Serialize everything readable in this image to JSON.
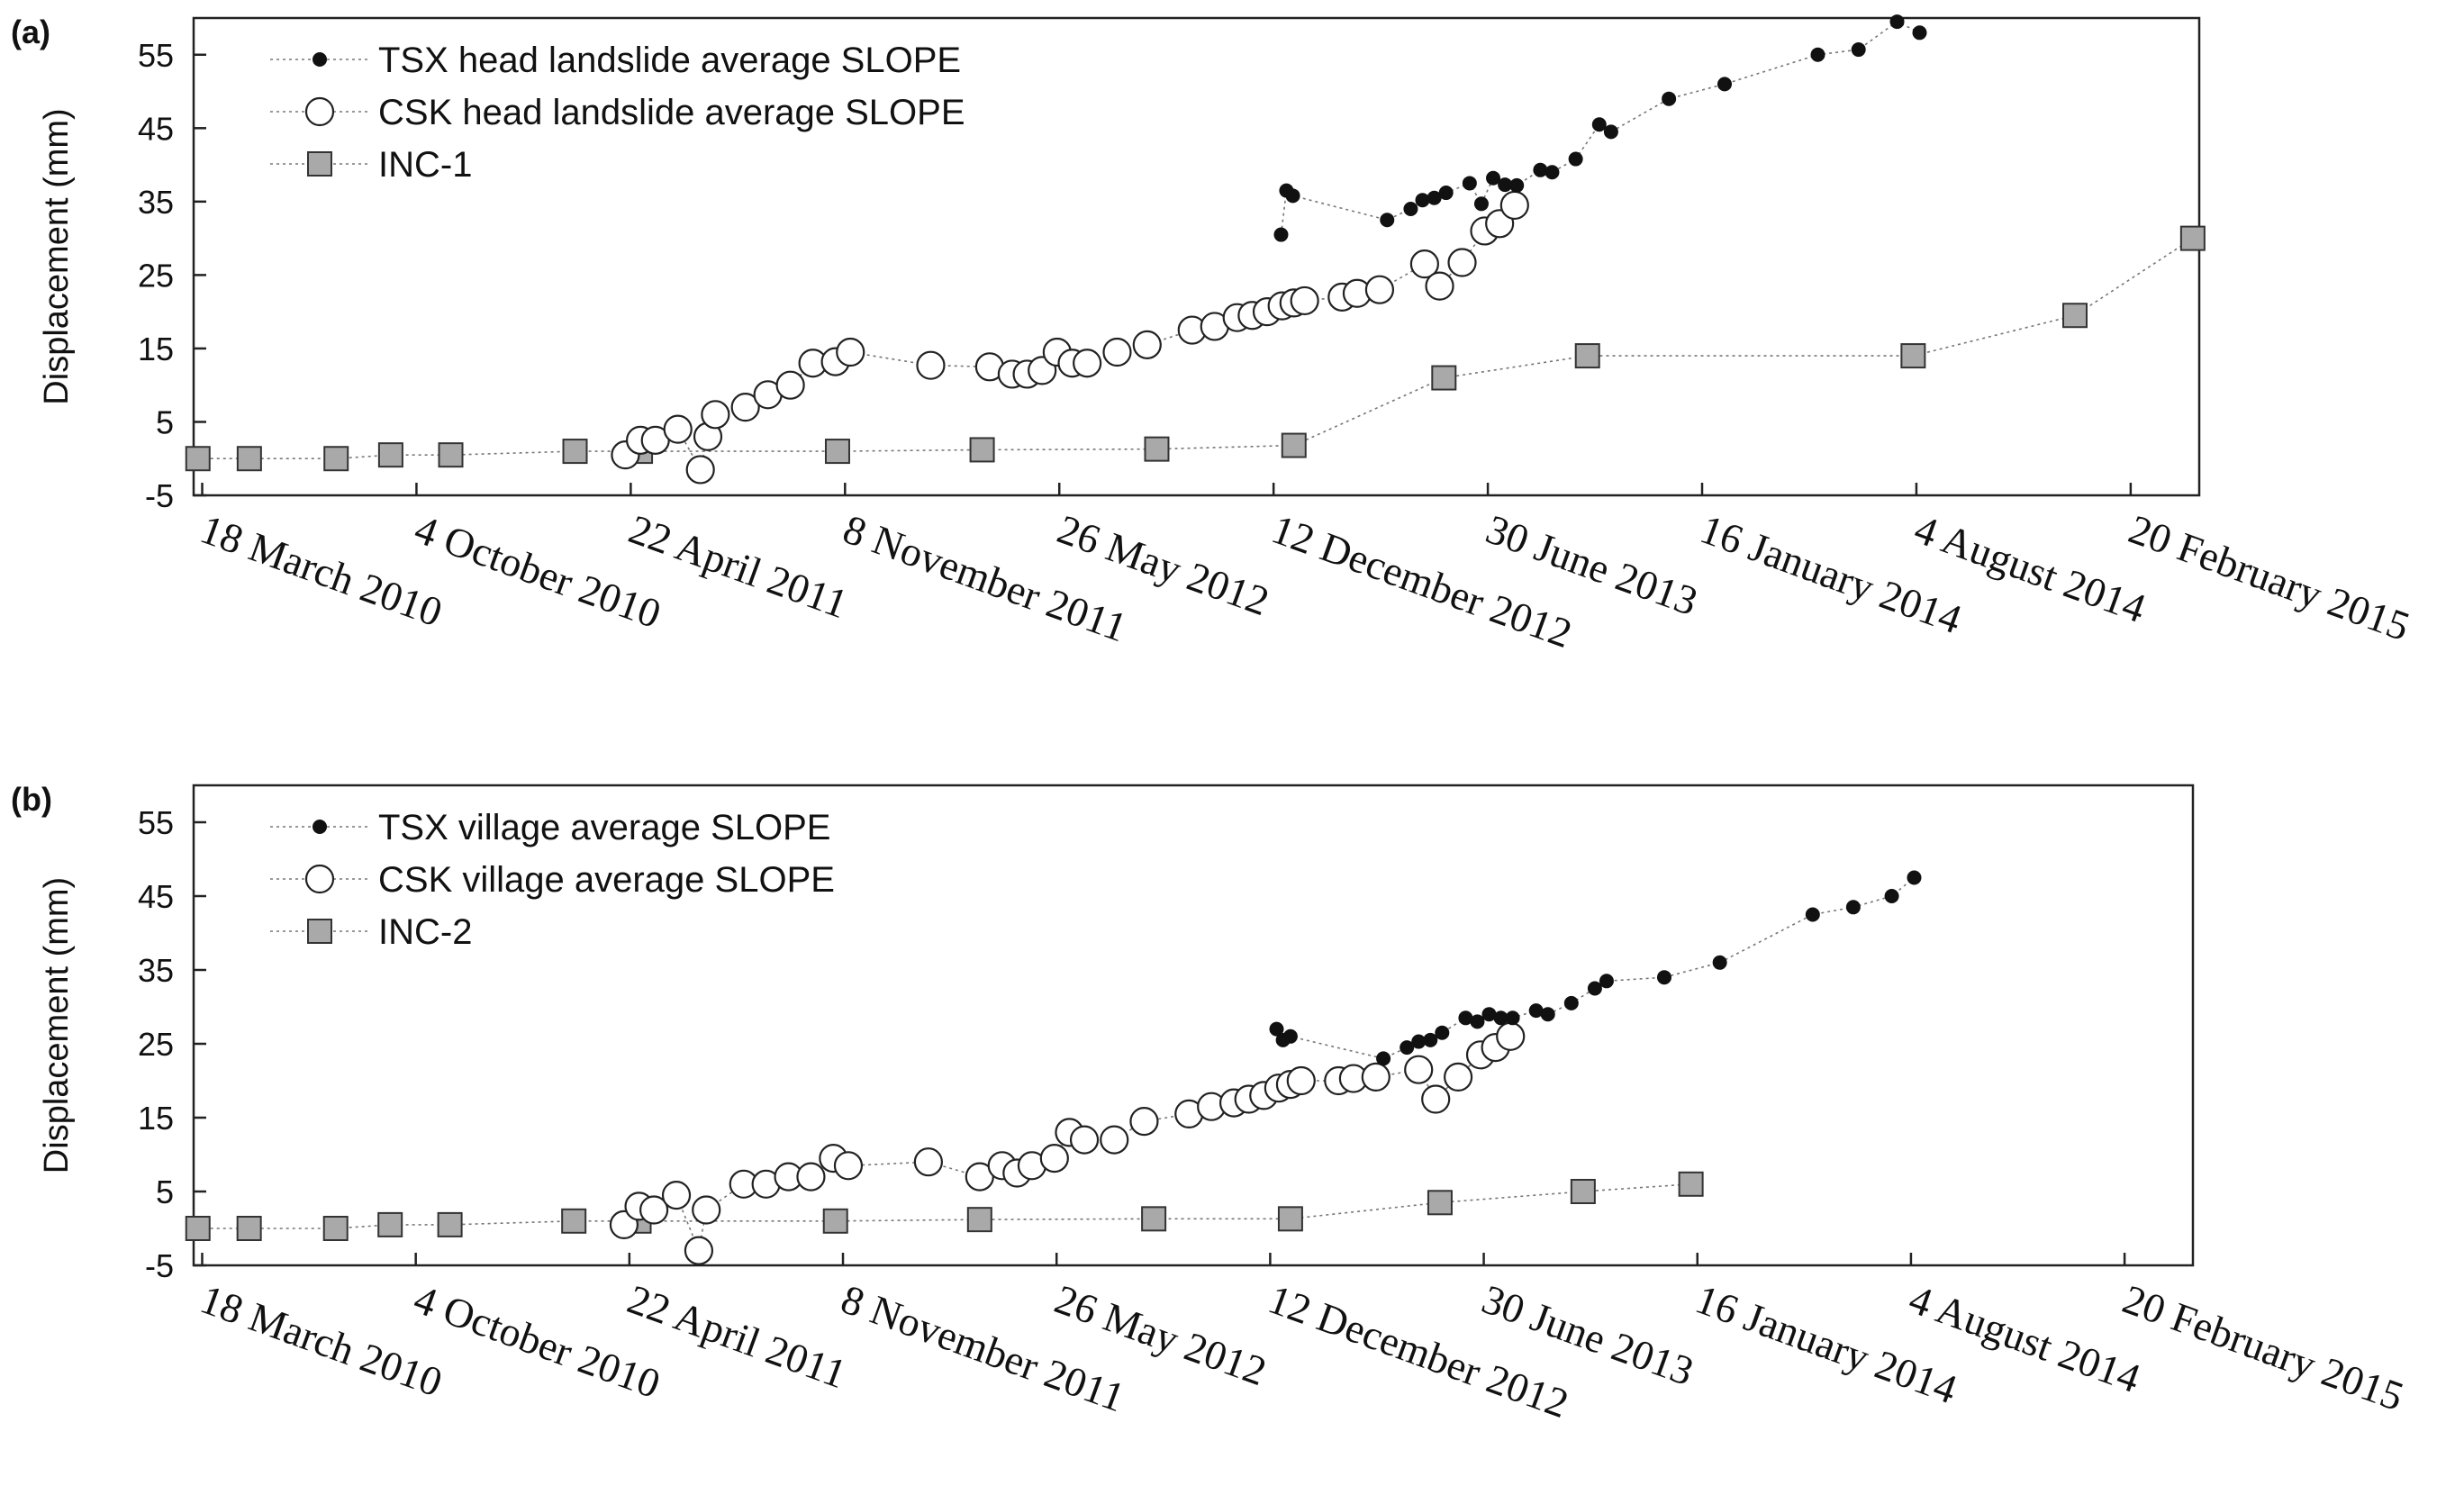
{
  "chart_data": [
    {
      "panel": "(a)",
      "type": "scatter",
      "ylabel": "Displacement (mm)",
      "xlabel": "",
      "ylim": [
        -5,
        60
      ],
      "yticks": [
        "-5",
        "5",
        "15",
        "25",
        "35",
        "45",
        "55"
      ],
      "xticks": [
        "18 March 2010",
        "4 October 2010",
        "22 April 2011",
        "8 November 2011",
        "26 May 2012",
        "12 December 2012",
        "30 June 2013",
        "16 January 2014",
        "4 August 2014",
        "20 February 2015"
      ],
      "legend_position": "top-left",
      "series": [
        {
          "name": "TSX head landslide average SLOPE",
          "marker": "filled-dot",
          "x": [
            "2012-12-19",
            "2012-12-24",
            "2012-12-30",
            "2013-03-28",
            "2013-04-19",
            "2013-04-30",
            "2013-05-11",
            "2013-05-22",
            "2013-06-13",
            "2013-06-24",
            "2013-07-05",
            "2013-07-16",
            "2013-07-27",
            "2013-08-18",
            "2013-08-29",
            "2013-09-20",
            "2013-10-12",
            "2013-10-23",
            "2013-12-16",
            "2014-02-06",
            "2014-05-04",
            "2014-06-11",
            "2014-07-17",
            "2014-08-07"
          ],
          "y": [
            30.5,
            36.5,
            35.8,
            32.5,
            34,
            35.2,
            35.5,
            36.2,
            37.5,
            34.7,
            38.2,
            37.3,
            37.2,
            39.3,
            39,
            40.8,
            45.5,
            44.5,
            49,
            51,
            55,
            55.7,
            59.5,
            58
          ]
        },
        {
          "name": "CSK head landslide average SLOPE",
          "marker": "open-circle",
          "x": [
            "2011-04-17",
            "2011-05-01",
            "2011-05-15",
            "2011-06-05",
            "2011-06-26",
            "2011-07-03",
            "2011-07-10",
            "2011-08-07",
            "2011-08-28",
            "2011-09-18",
            "2011-10-09",
            "2011-10-30",
            "2011-11-13",
            "2012-01-27",
            "2012-03-22",
            "2012-04-12",
            "2012-04-26",
            "2012-05-10",
            "2012-05-24",
            "2012-06-07",
            "2012-06-21",
            "2012-07-19",
            "2012-08-16",
            "2012-09-27",
            "2012-10-18",
            "2012-11-08",
            "2012-11-22",
            "2012-12-06",
            "2012-12-20",
            "2012-12-31",
            "2013-01-10",
            "2013-02-14",
            "2013-02-28",
            "2013-03-21",
            "2013-05-02",
            "2013-05-16",
            "2013-06-06",
            "2013-06-27",
            "2013-07-11",
            "2013-07-25"
          ],
          "y": [
            0.5,
            2.5,
            2.5,
            4,
            -1.5,
            3,
            6,
            7,
            8.7,
            10,
            13,
            13.2,
            14.5,
            12.7,
            12.5,
            11.5,
            11.5,
            12,
            14.5,
            13,
            13,
            14.5,
            15.5,
            17.5,
            18,
            19.2,
            19.5,
            20,
            20.8,
            21.2,
            21.5,
            22,
            22.5,
            23,
            26.5,
            23.5,
            26.7,
            31,
            32,
            34.5
          ]
        },
        {
          "name": "INC-1",
          "marker": "filled-square",
          "x": [
            "2010-03-14",
            "2010-05-01",
            "2010-07-21",
            "2010-09-10",
            "2010-11-05",
            "2011-03-01",
            "2011-05-01",
            "2011-11-01",
            "2012-03-15",
            "2012-08-25",
            "2012-12-31",
            "2013-05-20",
            "2013-10-01",
            "2014-08-01",
            "2014-12-30",
            "2015-04-19"
          ],
          "y": [
            0,
            0,
            0,
            0.5,
            0.5,
            1,
            1,
            1,
            1.2,
            1.3,
            1.8,
            11,
            14,
            14,
            19.5,
            30
          ]
        }
      ]
    },
    {
      "panel": "(b)",
      "type": "scatter",
      "ylabel": "Displacement (mm)",
      "xlabel": "",
      "ylim": [
        -5,
        60
      ],
      "yticks": [
        "-5",
        "5",
        "15",
        "25",
        "35",
        "45",
        "55"
      ],
      "xticks": [
        "18 March 2010",
        "4 October 2010",
        "22 April 2011",
        "8 November 2011",
        "26 May 2012",
        "12 December 2012",
        "30 June 2013",
        "16 January 2014",
        "4 August 2014",
        "20 February 2015"
      ],
      "legend_position": "top-left",
      "series": [
        {
          "name": "TSX village average SLOPE",
          "marker": "filled-dot",
          "x": [
            "2012-12-18",
            "2012-12-24",
            "2012-12-31",
            "2013-03-28",
            "2013-04-19",
            "2013-04-30",
            "2013-05-11",
            "2013-05-22",
            "2013-06-13",
            "2013-06-24",
            "2013-07-05",
            "2013-07-16",
            "2013-07-27",
            "2013-08-18",
            "2013-08-29",
            "2013-09-20",
            "2013-10-12",
            "2013-10-23",
            "2013-12-16",
            "2014-02-06",
            "2014-05-04",
            "2014-06-11",
            "2014-07-17",
            "2014-08-07"
          ],
          "y": [
            27,
            25.5,
            26,
            23,
            24.5,
            25.3,
            25.5,
            26.5,
            28.5,
            28,
            29,
            28.5,
            28.5,
            29.5,
            29,
            30.5,
            32.5,
            33.5,
            34,
            36,
            42.5,
            43.5,
            45,
            47.5
          ]
        },
        {
          "name": "CSK village average SLOPE",
          "marker": "open-circle",
          "x": [
            "2011-04-17",
            "2011-05-01",
            "2011-05-15",
            "2011-06-05",
            "2011-06-26",
            "2011-07-03",
            "2011-08-07",
            "2011-08-28",
            "2011-09-18",
            "2011-10-09",
            "2011-10-30",
            "2011-11-13",
            "2012-01-27",
            "2012-03-15",
            "2012-04-05",
            "2012-04-19",
            "2012-05-03",
            "2012-05-24",
            "2012-06-07",
            "2012-06-21",
            "2012-07-19",
            "2012-08-16",
            "2012-09-27",
            "2012-10-18",
            "2012-11-08",
            "2012-11-22",
            "2012-12-06",
            "2012-12-20",
            "2012-12-31",
            "2013-01-10",
            "2013-02-14",
            "2013-02-28",
            "2013-03-21",
            "2013-04-30",
            "2013-05-16",
            "2013-06-06",
            "2013-06-27",
            "2013-07-11",
            "2013-07-25"
          ],
          "y": [
            0.5,
            3,
            2.5,
            4.5,
            -3,
            2.5,
            6,
            6,
            7,
            7,
            9.5,
            8.5,
            9,
            7,
            8.5,
            7.5,
            8.5,
            9.5,
            13,
            12,
            12,
            14.5,
            15.5,
            16.5,
            17,
            17.5,
            18,
            19,
            19.5,
            20,
            20,
            20.3,
            20.5,
            21.5,
            17.5,
            20.5,
            23.5,
            24.5,
            26
          ]
        },
        {
          "name": "INC-2",
          "marker": "filled-square",
          "x": [
            "2010-03-14",
            "2010-05-01",
            "2010-07-21",
            "2010-09-10",
            "2010-11-05",
            "2011-03-01",
            "2011-05-01",
            "2011-11-01",
            "2012-03-15",
            "2012-08-25",
            "2012-12-31",
            "2013-05-20",
            "2013-10-01",
            "2014-01-10"
          ],
          "y": [
            0,
            0,
            0,
            0.5,
            0.5,
            1,
            1,
            1,
            1.2,
            1.3,
            1.3,
            3.5,
            5,
            6
          ]
        }
      ]
    }
  ]
}
